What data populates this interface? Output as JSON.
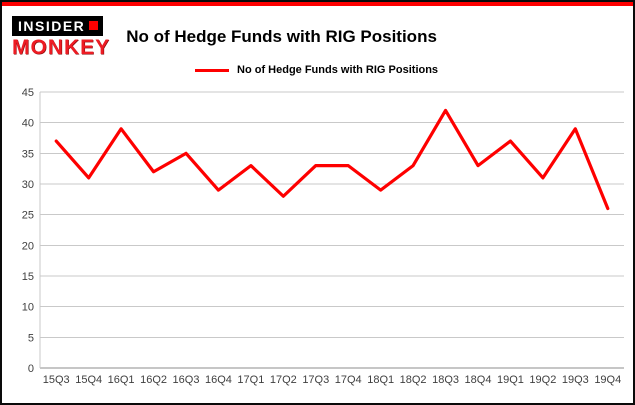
{
  "page": {
    "background": "#ffffff",
    "border_color": "#0a0a0a",
    "top_bar_color": "#fe0000"
  },
  "header": {
    "logo": {
      "line1": "INSIDER",
      "line2": "MONKEY"
    },
    "title": "No of Hedge Funds with RIG Positions"
  },
  "legend": {
    "label": "No of Hedge Funds with RIG Positions",
    "line_color": "#fe0000"
  },
  "chart_data": {
    "type": "line",
    "title": "No of Hedge Funds with RIG Positions",
    "categories": [
      "15Q3",
      "15Q4",
      "16Q1",
      "16Q2",
      "16Q3",
      "16Q4",
      "17Q1",
      "17Q2",
      "17Q3",
      "17Q4",
      "18Q1",
      "18Q2",
      "18Q3",
      "18Q4",
      "19Q1",
      "19Q2",
      "19Q3",
      "19Q4"
    ],
    "series": [
      {
        "name": "No of Hedge Funds with RIG Positions",
        "color": "#fe0000",
        "values": [
          37,
          31,
          39,
          32,
          35,
          29,
          33,
          28,
          33,
          33,
          29,
          33,
          42,
          33,
          37,
          31,
          39,
          26
        ]
      }
    ],
    "xlabel": "",
    "ylabel": "",
    "ylim": [
      0,
      45
    ],
    "ytick_step": 5,
    "grid": true,
    "legend_position": "top-left",
    "colors": {
      "grid": "#c9c9c9",
      "axis": "#8c8c8c",
      "tick_text": "#3f3f3f"
    }
  }
}
